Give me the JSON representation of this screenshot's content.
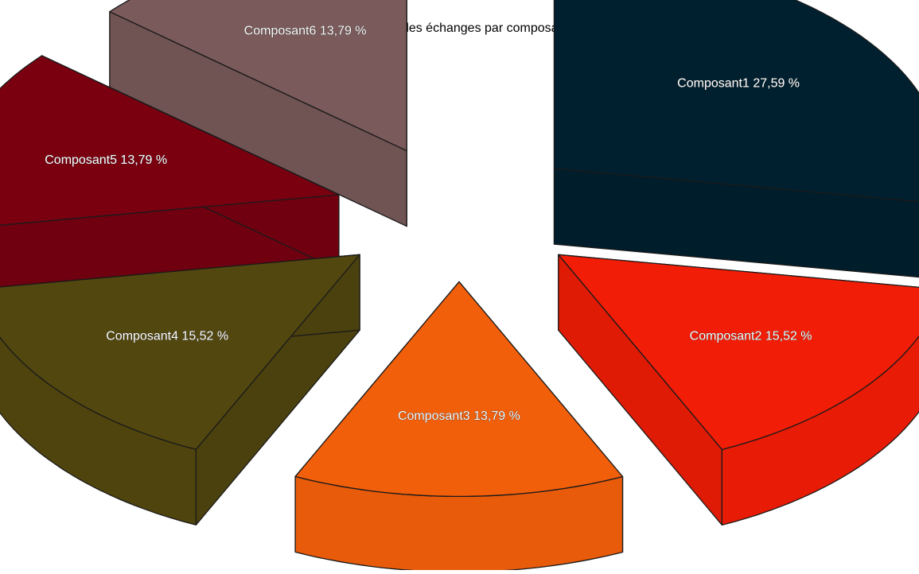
{
  "chart_data": {
    "type": "pie",
    "title": "Mesures des échanges par composant",
    "style": "3d-exploded",
    "legend": "none",
    "slices": [
      {
        "name": "Composant1",
        "value": 27.59,
        "label": "Composant1 27,59 %",
        "color": "#00202F"
      },
      {
        "name": "Composant2",
        "value": 15.52,
        "label": "Composant2 15,52 %",
        "color": "#F21D06"
      },
      {
        "name": "Composant3",
        "value": 13.79,
        "label": "Composant3 13,79 %",
        "color": "#F25F0B"
      },
      {
        "name": "Composant4",
        "value": 15.52,
        "label": "Composant4 15,52 %",
        "color": "#52470F"
      },
      {
        "name": "Composant5",
        "value": 13.79,
        "label": "Composant5 13,79 %",
        "color": "#7A0010"
      },
      {
        "name": "Composant6",
        "value": 13.79,
        "label": "Composant6 13,79 %",
        "color": "#7A5A5A"
      }
    ]
  }
}
